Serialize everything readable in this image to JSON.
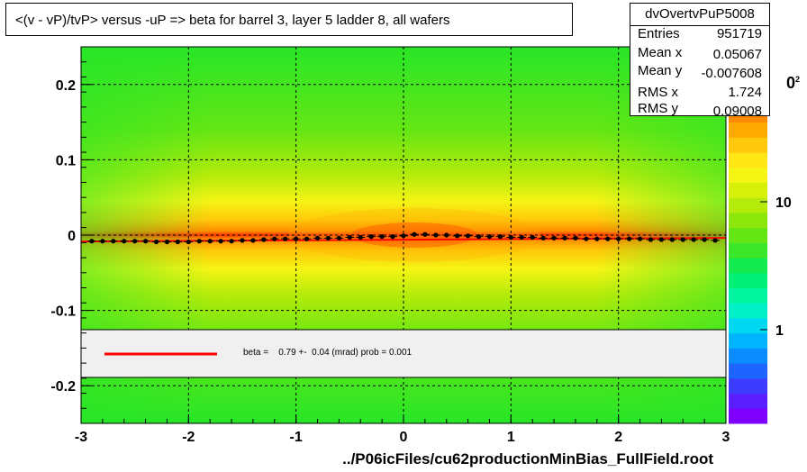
{
  "title": "<(v - vP)/tvP> versus  -uP => beta for barrel 3, layer 5 ladder 8, all wafers",
  "stats": {
    "name": "dvOvertvPuP5008",
    "rows": [
      {
        "label": "Entries",
        "value": "951719"
      },
      {
        "label": "Mean x",
        "value": "0.05067"
      },
      {
        "label": "Mean y",
        "value": "-0.007608"
      },
      {
        "label": "RMS x",
        "value": "1.724"
      },
      {
        "label": "RMS y",
        "value": "0.09008"
      }
    ]
  },
  "fit_legend": "beta =    0.79 +-  0.04 (mrad) prob = 0.001",
  "footer": "../P06icFiles/cu62productionMinBias_FullField.root",
  "colors": {
    "fit_line": "#ff0000",
    "profile_points": "#000000",
    "legend_bg": "#f0f0f0",
    "palette": [
      "#7f00ff",
      "#5a1eff",
      "#3c3cff",
      "#1e64ff",
      "#0a8cff",
      "#00b4ff",
      "#00d7f0",
      "#00f0c8",
      "#00f5a0",
      "#00f078",
      "#14eb50",
      "#3ce628",
      "#64e614",
      "#8ce60a",
      "#b4eb0a",
      "#d7f00a",
      "#f5f514",
      "#ffe614",
      "#ffc80a",
      "#ffaa00",
      "#ff8c00",
      "#ff6e00",
      "#ff5000",
      "#ff3200",
      "#ff0000"
    ]
  },
  "chart_data": {
    "type": "heatmap",
    "title": "<(v - vP)/tvP> versus  -uP => beta for barrel 3, layer 5 ladder 8, all wafers",
    "xlabel": "",
    "ylabel": "",
    "xlim": [
      -3,
      3
    ],
    "ylim": [
      -0.25,
      0.25
    ],
    "x_ticks": [
      "-3",
      "-2",
      "-1",
      "0",
      "1",
      "2",
      "3"
    ],
    "y_ticks": [
      "-0.2",
      "-0.1",
      "0",
      "0.1",
      "0.2"
    ],
    "z_ticks": [
      "1",
      "10"
    ],
    "z_scale": "log",
    "grid": true,
    "profile": {
      "x": [
        -2.9,
        -2.8,
        -2.7,
        -2.6,
        -2.5,
        -2.4,
        -2.3,
        -2.2,
        -2.1,
        -2.0,
        -1.9,
        -1.8,
        -1.7,
        -1.6,
        -1.5,
        -1.4,
        -1.3,
        -1.2,
        -1.1,
        -1.0,
        -0.9,
        -0.8,
        -0.7,
        -0.6,
        -0.5,
        -0.4,
        -0.3,
        -0.2,
        -0.1,
        0.0,
        0.1,
        0.2,
        0.3,
        0.4,
        0.5,
        0.6,
        0.7,
        0.8,
        0.9,
        1.0,
        1.1,
        1.2,
        1.3,
        1.4,
        1.5,
        1.6,
        1.7,
        1.8,
        1.9,
        2.0,
        2.1,
        2.2,
        2.3,
        2.4,
        2.5,
        2.6,
        2.7,
        2.8,
        2.9
      ],
      "y": [
        -0.008,
        -0.008,
        -0.008,
        -0.008,
        -0.008,
        -0.008,
        -0.009,
        -0.009,
        -0.009,
        -0.009,
        -0.008,
        -0.008,
        -0.008,
        -0.008,
        -0.007,
        -0.007,
        -0.006,
        -0.005,
        -0.005,
        -0.005,
        -0.005,
        -0.004,
        -0.004,
        -0.004,
        -0.003,
        -0.003,
        -0.002,
        -0.002,
        -0.002,
        -0.001,
        0.001,
        0.001,
        0.0,
        0.0,
        -0.001,
        -0.001,
        -0.002,
        -0.002,
        -0.002,
        -0.003,
        -0.003,
        -0.003,
        -0.004,
        -0.004,
        -0.004,
        -0.004,
        -0.005,
        -0.005,
        -0.005,
        -0.005,
        -0.005,
        -0.005,
        -0.006,
        -0.006,
        -0.006,
        -0.006,
        -0.006,
        -0.006,
        -0.007
      ]
    },
    "fit": {
      "x": [
        -3,
        3
      ],
      "y": [
        -0.0085,
        -0.0037
      ]
    },
    "legend": "bottom-inside"
  }
}
